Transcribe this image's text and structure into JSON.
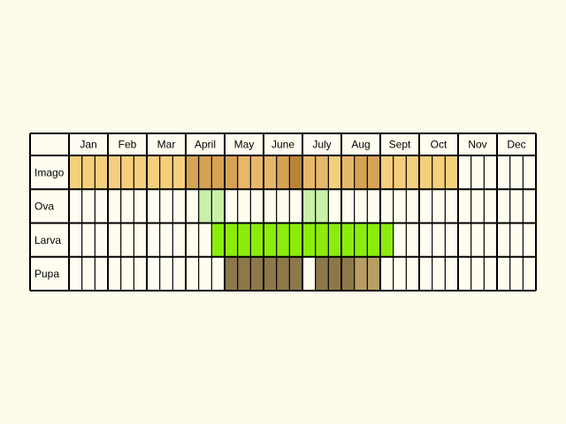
{
  "chart_data": {
    "type": "table",
    "title": "",
    "months": [
      "Jan",
      "Feb",
      "Mar",
      "April",
      "May",
      "June",
      "July",
      "Aug",
      "Sept",
      "Oct",
      "Nov",
      "Dec"
    ],
    "colors": {
      "background": "#fdfbe9",
      "cell_empty": "#fffdf0",
      "grid": "#000000",
      "imago_light": "#f6cf7c",
      "imago_medium": "#e6b86a",
      "imago_dark": "#d6a355",
      "imago_darkest": "#b8843a",
      "ova": "#c9f0a8",
      "larva": "#8ced0c",
      "pupa": "#8c7848",
      "pupa_light": "#b79e62"
    },
    "rows": [
      {
        "stage": "Imago",
        "cells": [
          "imago_light",
          "imago_light",
          "imago_light",
          "imago_light",
          "imago_light",
          "imago_light",
          "imago_light",
          "imago_light",
          "imago_light",
          "imago_dark",
          "imago_dark",
          "imago_dark",
          "imago_dark",
          "imago_medium",
          "imago_medium",
          "imago_medium",
          "imago_dark",
          "imago_darkest",
          "imago_medium",
          "imago_medium",
          "imago_light",
          "imago_medium",
          "imago_dark",
          "imago_dark",
          "imago_light",
          "imago_light",
          "imago_light",
          "imago_light",
          "imago_light",
          "imago_light"
        ]
      },
      {
        "stage": "Ova",
        "cells": [
          null,
          null,
          null,
          null,
          null,
          null,
          null,
          null,
          null,
          null,
          "ova",
          "ova",
          null,
          null,
          null,
          null,
          null,
          null,
          "ova",
          "ova",
          null,
          null,
          null,
          null,
          null,
          null,
          null,
          null,
          null,
          null
        ]
      },
      {
        "stage": "Larva",
        "cells": [
          null,
          null,
          null,
          null,
          null,
          null,
          null,
          null,
          null,
          null,
          null,
          "larva",
          "larva",
          "larva",
          "larva",
          "larva",
          "larva",
          "larva",
          "larva",
          "larva",
          "larva",
          "larva",
          "larva",
          "larva",
          "larva",
          null,
          null,
          null,
          null,
          null
        ]
      },
      {
        "stage": "Pupa",
        "cells": [
          null,
          null,
          null,
          null,
          null,
          null,
          null,
          null,
          null,
          null,
          null,
          null,
          "pupa",
          "pupa",
          "pupa",
          "pupa",
          "pupa",
          "pupa",
          null,
          "pupa",
          "pupa",
          "pupa",
          "pupa_light",
          "pupa_light",
          null,
          null,
          null,
          null,
          null,
          null
        ]
      }
    ]
  }
}
